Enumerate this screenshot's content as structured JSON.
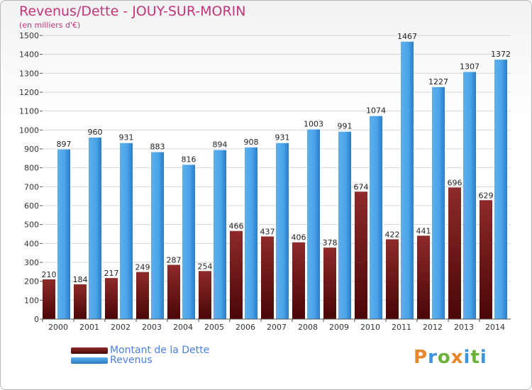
{
  "header": {
    "title": "Revenus/Dette - JOUY-SUR-MORIN",
    "subtitle": "(en milliers d'€)"
  },
  "legend": [
    {
      "label": "Montant de la Dette",
      "color": "#6b0f0f"
    },
    {
      "label": "Revenus",
      "color": "#3d93dc"
    }
  ],
  "logo": {
    "text": "Proxiti"
  },
  "chart_data": {
    "type": "bar",
    "title": "Revenus/Dette - JOUY-SUR-MORIN",
    "subtitle": "(en milliers d'€)",
    "categories": [
      "2000",
      "2001",
      "2002",
      "2003",
      "2004",
      "2005",
      "2006",
      "2007",
      "2008",
      "2009",
      "2010",
      "2011",
      "2012",
      "2013",
      "2014"
    ],
    "series": [
      {
        "name": "Montant de la Dette",
        "color": "#7a1c1c",
        "values": [
          210,
          184,
          217,
          249,
          287,
          254,
          466,
          437,
          406,
          378,
          674,
          422,
          441,
          696,
          629
        ]
      },
      {
        "name": "Revenus",
        "color": "#3d93dc",
        "values": [
          897,
          960,
          931,
          883,
          816,
          894,
          908,
          931,
          1003,
          991,
          1074,
          1467,
          1227,
          1307,
          1372
        ]
      }
    ],
    "ylim": [
      0,
      1500
    ],
    "yticks": [
      0,
      100,
      200,
      300,
      400,
      500,
      600,
      700,
      800,
      900,
      1000,
      1100,
      1200,
      1300,
      1400,
      1500
    ],
    "grid": true,
    "legend_position": "bottom-left"
  }
}
